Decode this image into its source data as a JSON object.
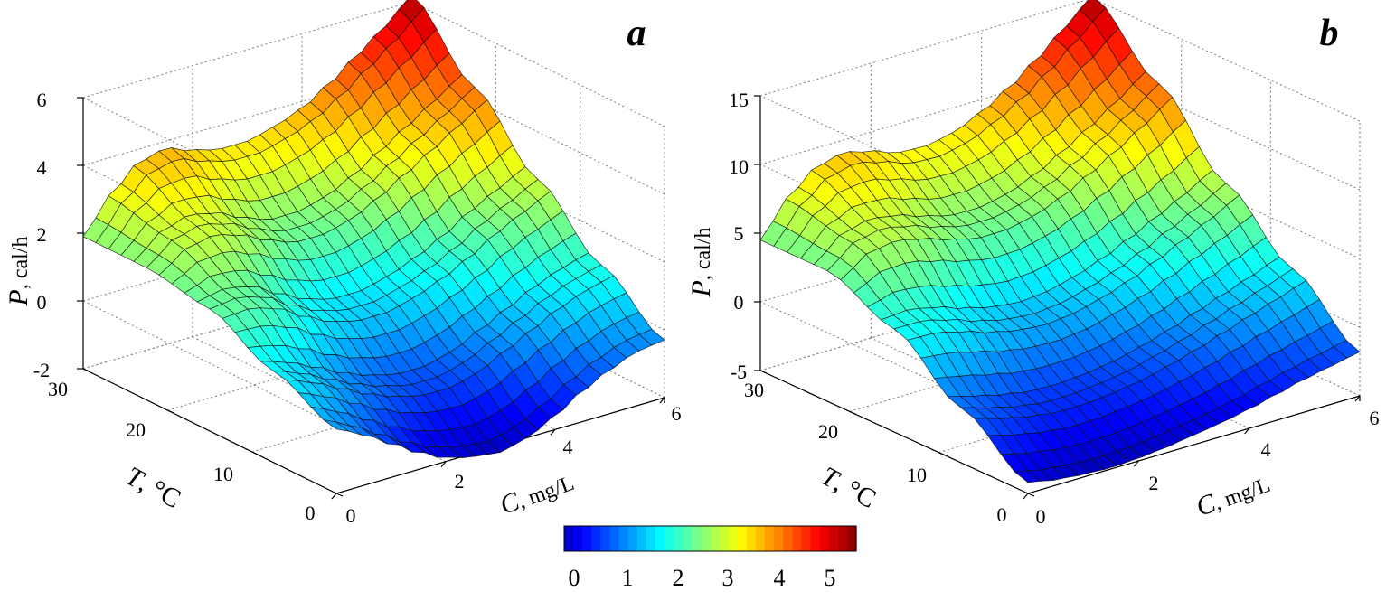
{
  "chart_data": [
    {
      "type": "surface3d",
      "panel_label": "a",
      "zlabel_symbol": "P",
      "zlabel_unit": ", cal/h",
      "xlabel_symbol": "C",
      "xlabel_unit": ", mg/L",
      "ylabel_symbol": "T",
      "ylabel_unit": ", °C",
      "x_ticks": [
        "0",
        "2",
        "4",
        "6"
      ],
      "y_ticks": [
        "0",
        "10",
        "20",
        "30"
      ],
      "z_ticks": [
        "-2",
        "0",
        "2",
        "4",
        "6"
      ],
      "xlim": [
        0,
        6
      ],
      "ylim": [
        0,
        30
      ],
      "zlim": [
        -2,
        6
      ],
      "grid": true,
      "z_values": [
        [
          -0.1,
          -0.5,
          -1.0,
          -1.5,
          -1.9,
          -2.1,
          -2.2,
          -2.0,
          -1.6,
          -1.1,
          -0.7,
          -0.4,
          -0.3
        ],
        [
          0.7,
          0.4,
          0.0,
          -0.4,
          -0.7,
          -0.9,
          -0.9,
          -0.7,
          -0.3,
          0.1,
          0.5,
          0.8,
          1.0
        ],
        [
          1.6,
          1.7,
          1.5,
          1.0,
          0.6,
          0.4,
          0.4,
          0.6,
          0.9,
          1.3,
          1.8,
          2.2,
          2.6
        ],
        [
          1.9,
          2.5,
          2.7,
          2.5,
          2.1,
          1.8,
          1.8,
          2.0,
          2.4,
          2.9,
          3.4,
          3.9,
          4.4
        ],
        [
          1.9,
          2.9,
          3.6,
          3.8,
          3.5,
          3.3,
          3.3,
          3.5,
          3.8,
          4.3,
          4.9,
          5.5,
          6.2
        ]
      ]
    },
    {
      "type": "surface3d",
      "panel_label": "b",
      "zlabel_symbol": "P",
      "zlabel_unit": ", cal/h",
      "xlabel_symbol": "C",
      "xlabel_unit": ", mg/L",
      "ylabel_symbol": "T",
      "ylabel_unit": ", °C",
      "x_ticks": [
        "0",
        "2",
        "4",
        "6"
      ],
      "y_ticks": [
        "0",
        "10",
        "20",
        "30"
      ],
      "z_ticks": [
        "-5",
        "0",
        "5",
        "10",
        "15"
      ],
      "xlim": [
        0,
        6
      ],
      "ylim": [
        0,
        30
      ],
      "zlim": [
        -5,
        15
      ],
      "grid": true,
      "z_values": [
        [
          -4.2,
          -4.6,
          -4.8,
          -4.9,
          -4.8,
          -4.6,
          -4.3,
          -4.0,
          -3.6,
          -3.1,
          -2.6,
          -2.2,
          -1.8
        ],
        [
          -1.0,
          -1.6,
          -2.1,
          -2.4,
          -2.4,
          -2.2,
          -1.9,
          -1.4,
          -0.8,
          -0.1,
          0.6,
          1.3,
          2.0
        ],
        [
          2.5,
          2.5,
          2.0,
          1.3,
          0.8,
          0.6,
          0.8,
          1.3,
          2.0,
          2.9,
          3.9,
          4.9,
          6.0
        ],
        [
          4.5,
          6.0,
          6.4,
          6.0,
          5.3,
          4.8,
          4.8,
          5.2,
          6.0,
          7.1,
          8.3,
          9.6,
          11.0
        ],
        [
          4.5,
          7.0,
          8.6,
          9.1,
          8.6,
          7.9,
          7.8,
          8.2,
          9.1,
          10.3,
          11.8,
          13.5,
          15.2
        ]
      ]
    }
  ],
  "colorbar": {
    "tick_labels": [
      "0",
      "1",
      "2",
      "3",
      "4",
      "5"
    ],
    "range": [
      0,
      5.4
    ],
    "colormap": "jet",
    "n_colors": 32
  }
}
